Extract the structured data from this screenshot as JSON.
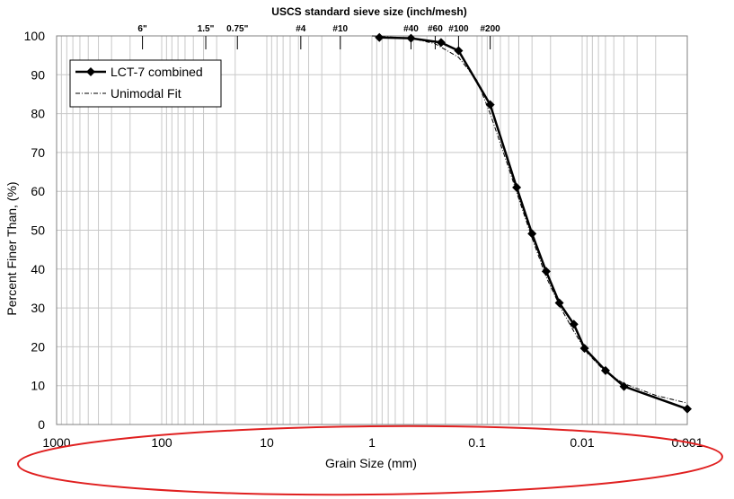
{
  "chart_data": {
    "type": "line",
    "title": "USCS standard sieve size (inch/mesh)",
    "xlabel": "Grain Size (mm)",
    "ylabel": "Percent Finer Than, (%)",
    "x_scale": "log",
    "x_reversed": true,
    "xlim": [
      1000,
      0.001
    ],
    "ylim": [
      0,
      100
    ],
    "x_ticks": [
      {
        "value": 1000,
        "label": "1000"
      },
      {
        "value": 100,
        "label": "100"
      },
      {
        "value": 10,
        "label": "10"
      },
      {
        "value": 1,
        "label": "1"
      },
      {
        "value": 0.1,
        "label": "0.1"
      },
      {
        "value": 0.01,
        "label": "0.01"
      },
      {
        "value": 0.001,
        "label": "0.001"
      }
    ],
    "y_ticks": [
      0,
      10,
      20,
      30,
      40,
      50,
      60,
      70,
      80,
      90,
      100
    ],
    "sieves": [
      {
        "label": "6\"",
        "value": 152.4
      },
      {
        "label": "1.5\"",
        "value": 38.1
      },
      {
        "label": "0.75\"",
        "value": 19.05
      },
      {
        "label": "#4",
        "value": 4.75
      },
      {
        "label": "#10",
        "value": 2.0
      },
      {
        "label": "#40",
        "value": 0.425
      },
      {
        "label": "#60",
        "value": 0.25
      },
      {
        "label": "#100",
        "value": 0.15
      },
      {
        "label": "#200",
        "value": 0.075
      }
    ],
    "grid": true,
    "legend": "top-left",
    "series": [
      {
        "name": "LCT-7 combined",
        "color": "#000000",
        "style": "solid-diamond",
        "x": [
          0.85,
          0.425,
          0.22,
          0.15,
          0.075,
          0.042,
          0.03,
          0.022,
          0.0165,
          0.012,
          0.0095,
          0.006,
          0.004,
          0.001
        ],
        "y": [
          99.6,
          99.4,
          98.3,
          96.2,
          82.3,
          61.0,
          49.1,
          39.4,
          31.3,
          25.8,
          19.6,
          13.9,
          9.8,
          4.0
        ]
      },
      {
        "name": "Unimodal Fit",
        "color": "#000000",
        "style": "dash-dot",
        "x": [
          1.0,
          0.425,
          0.25,
          0.15,
          0.1,
          0.075,
          0.05,
          0.04,
          0.03,
          0.022,
          0.016,
          0.012,
          0.009,
          0.006,
          0.004,
          0.002,
          0.001
        ],
        "y": [
          100.0,
          99.4,
          98.0,
          94.5,
          88.5,
          80.0,
          66.0,
          58.0,
          48.0,
          38.0,
          30.0,
          24.0,
          18.5,
          13.5,
          10.5,
          7.5,
          5.5
        ]
      }
    ]
  }
}
